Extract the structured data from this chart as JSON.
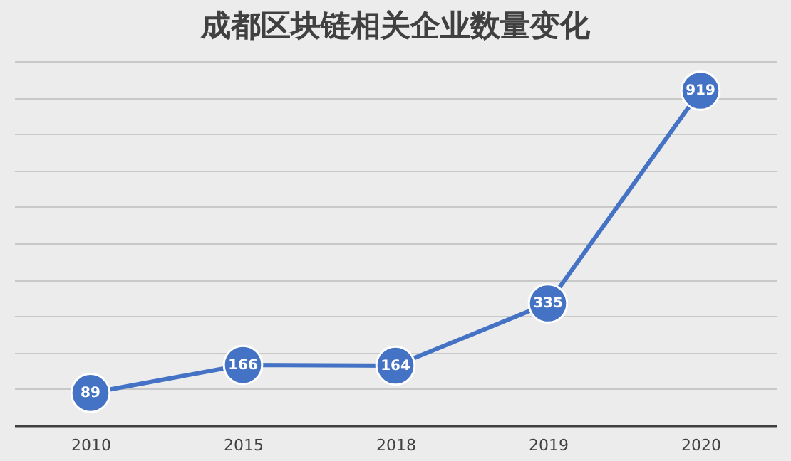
{
  "chart_data": {
    "type": "line",
    "title": "成都区块链相关企业数量变化",
    "categories": [
      "2010",
      "2015",
      "2018",
      "2019",
      "2020"
    ],
    "series": [
      {
        "color": "#4472c4",
        "values": [
          89,
          166,
          164,
          335,
          919
        ]
      }
    ],
    "ylim": [
      0,
      1000
    ],
    "yticks": [
      {
        "value": 0,
        "label": null
      },
      {
        "value": 100,
        "label": null
      },
      {
        "value": 200,
        "label": null
      },
      {
        "value": 300,
        "label": null
      },
      {
        "value": 400,
        "label": null
      },
      {
        "value": 500,
        "label": null
      },
      {
        "value": 600,
        "label": null
      },
      {
        "value": 700,
        "label": null
      },
      {
        "value": 800,
        "label": null
      },
      {
        "value": 900,
        "label": null
      },
      {
        "value": 1000,
        "label": null
      }
    ],
    "grid": "y",
    "tick_labels": "x",
    "marker": "circle",
    "line_style": "solid",
    "data_labels": true,
    "legend": false
  }
}
